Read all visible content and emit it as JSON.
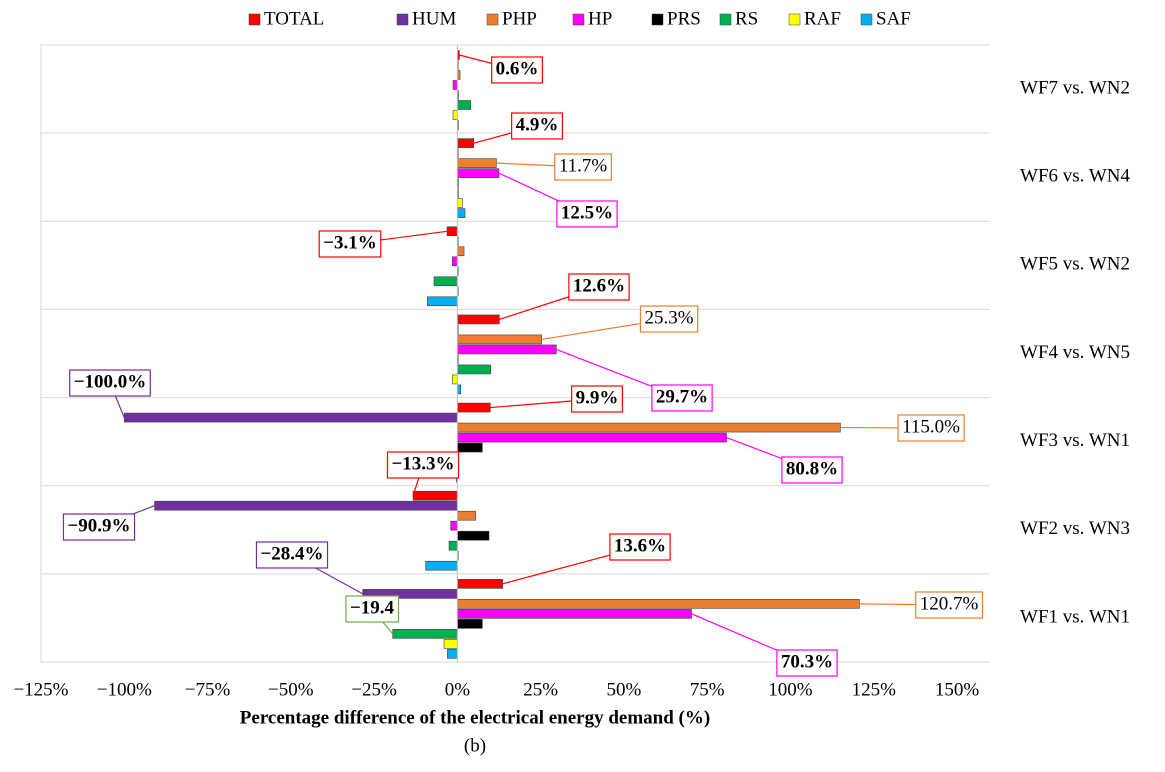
{
  "chart_data": {
    "type": "hbar",
    "xlabel": "Percentage difference of the electrical energy demand (%)",
    "caption": "(b)",
    "categories": [
      "WF1 vs. WN1",
      "WF2 vs. WN3",
      "WF3 vs. WN1",
      "WF4 vs. WN5",
      "WF5 vs. WN2",
      "WF6 vs. WN4",
      "WF7 vs. WN2"
    ],
    "xlim": [
      -125,
      150
    ],
    "xticks": [
      {
        "value": -125,
        "label": "−125%"
      },
      {
        "value": -100,
        "label": "−100%"
      },
      {
        "value": -75,
        "label": "−75%"
      },
      {
        "value": -50,
        "label": "−50%"
      },
      {
        "value": -25,
        "label": "−25%"
      },
      {
        "value": 0,
        "label": "0%"
      },
      {
        "value": 25,
        "label": "25%"
      },
      {
        "value": 50,
        "label": "50%"
      },
      {
        "value": 75,
        "label": "75%"
      },
      {
        "value": 100,
        "label": "100%"
      },
      {
        "value": 125,
        "label": "125%"
      },
      {
        "value": 150,
        "label": "150%"
      }
    ],
    "legend": "top",
    "series": [
      {
        "name": "TOTAL",
        "color": "#ff0000",
        "values": [
          13.6,
          -13.3,
          9.9,
          12.6,
          -3.1,
          4.9,
          0.6
        ],
        "value_labels": [
          "13.6%",
          "−13.3%",
          "9.9%",
          "12.6%",
          "−3.1%",
          "4.9%",
          "0.6%"
        ]
      },
      {
        "name": "HUM",
        "color": "#7030a0",
        "values": [
          -28.4,
          -90.9,
          -100.0,
          0,
          0,
          0,
          0
        ],
        "value_labels": [
          "−28.4%",
          "−90.9%",
          "−100.0%",
          null,
          null,
          null,
          null
        ]
      },
      {
        "name": "PHP",
        "color": "#ed7d31",
        "values": [
          120.7,
          5.5,
          115.0,
          25.3,
          2.0,
          11.7,
          0.8
        ],
        "value_labels": [
          "120.7%",
          null,
          "115.0%",
          "25.3%",
          null,
          "11.7%",
          null
        ]
      },
      {
        "name": "HP",
        "color": "#ff00ff",
        "values": [
          70.3,
          -2.0,
          80.8,
          29.7,
          -1.5,
          12.5,
          -1.3
        ],
        "value_labels": [
          "70.3%",
          null,
          "80.8%",
          "29.7%",
          null,
          "12.5%",
          null
        ]
      },
      {
        "name": "PRS",
        "color": "#000000",
        "values": [
          7.5,
          9.5,
          7.5,
          0,
          0,
          0.3,
          0.3
        ]
      },
      {
        "name": "RS",
        "color": "#00b050",
        "values": [
          -19.4,
          -2.5,
          -6.5,
          10.0,
          -7.0,
          0.3,
          4.0
        ],
        "value_labels": [
          "−19.4",
          null,
          null,
          null,
          null,
          null,
          null
        ]
      },
      {
        "name": "RAF",
        "color": "#ffff00",
        "values": [
          -4.0,
          0,
          0,
          -1.5,
          0,
          1.5,
          -1.3
        ]
      },
      {
        "name": "SAF",
        "color": "#00b0f0",
        "values": [
          -3.0,
          -9.5,
          -0.3,
          1.0,
          -9.0,
          2.3,
          0.3
        ]
      }
    ]
  }
}
